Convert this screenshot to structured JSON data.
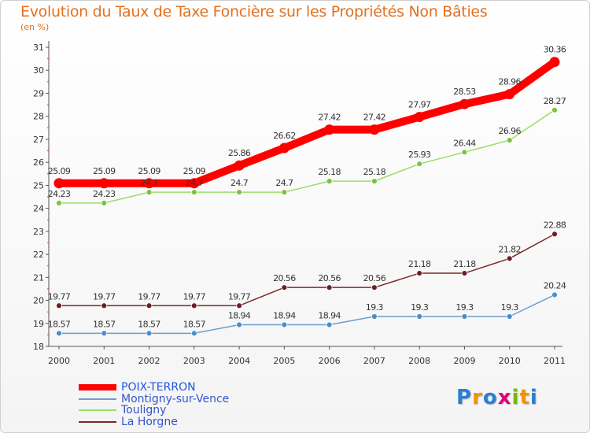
{
  "header": {
    "title": "Evolution du Taux de Taxe Foncière sur les Propriétés Non Bâties",
    "unit": "(en %)"
  },
  "logo": {
    "text": "Proxiti",
    "colors": [
      "#2a7fd4",
      "#f39200",
      "#2a7fd4",
      "#e4007c",
      "#7ab800",
      "#f39200",
      "#2a7fd4"
    ]
  },
  "chart_data": {
    "type": "line",
    "title": "Evolution du Taux de Taxe Foncière sur les Propriétés Non Bâties",
    "ylabel": "(en %)",
    "xlabel": "",
    "ylim": [
      18,
      31
    ],
    "grid": false,
    "legend_position": "bottom-left",
    "x": [
      "2000",
      "2001",
      "2002",
      "2003",
      "2004",
      "2005",
      "2006",
      "2007",
      "2008",
      "2009",
      "2010",
      "2011"
    ],
    "yticks": [
      "18",
      "19",
      "20",
      "21",
      "22",
      "23",
      "24",
      "25",
      "26",
      "27",
      "28",
      "29",
      "30",
      "31"
    ],
    "series": [
      {
        "name": "POIX-TERRON",
        "color": "#ff0000",
        "point_color": "#ff0000",
        "values": [
          25.09,
          25.09,
          25.09,
          25.09,
          25.86,
          26.62,
          27.42,
          27.42,
          27.97,
          28.53,
          28.96,
          30.36
        ],
        "labels": [
          "25.09",
          "25.09",
          "25.09",
          "25.09",
          "25.86",
          "26.62",
          "27.42",
          "27.42",
          "27.97",
          "28.53",
          "28.96",
          "30.36"
        ]
      },
      {
        "name": "Montigny-sur-Vence",
        "color": "#6e9ccc",
        "point_color": "#4a8dcf",
        "values": [
          18.57,
          18.57,
          18.57,
          18.57,
          18.94,
          18.94,
          18.94,
          19.3,
          19.3,
          19.3,
          19.3,
          20.24
        ],
        "labels": [
          "18.57",
          "18.57",
          "18.57",
          "18.57",
          "18.94",
          "18.94",
          "18.94",
          "19.3",
          "19.3",
          "19.3",
          "19.3",
          "20.24"
        ]
      },
      {
        "name": "Touligny",
        "color": "#99dd66",
        "point_color": "#7cc242",
        "values": [
          24.23,
          24.23,
          24.7,
          24.7,
          24.7,
          24.7,
          25.18,
          25.18,
          25.93,
          26.44,
          26.96,
          28.27
        ],
        "labels": [
          "24.23",
          "24.23",
          "24.7",
          "24.7",
          "24.7",
          "24.7",
          "25.18",
          "25.18",
          "25.93",
          "26.44",
          "26.96",
          "28.27"
        ]
      },
      {
        "name": "La Horgne",
        "color": "#7a2a2a",
        "point_color": "#6b1f24",
        "values": [
          19.77,
          19.77,
          19.77,
          19.77,
          19.77,
          20.56,
          20.56,
          20.56,
          21.18,
          21.18,
          21.82,
          22.88
        ],
        "labels": [
          "19.77",
          "19.77",
          "19.77",
          "19.77",
          "19.77",
          "20.56",
          "20.56",
          "20.56",
          "21.18",
          "21.18",
          "21.82",
          "22.88"
        ]
      }
    ]
  }
}
